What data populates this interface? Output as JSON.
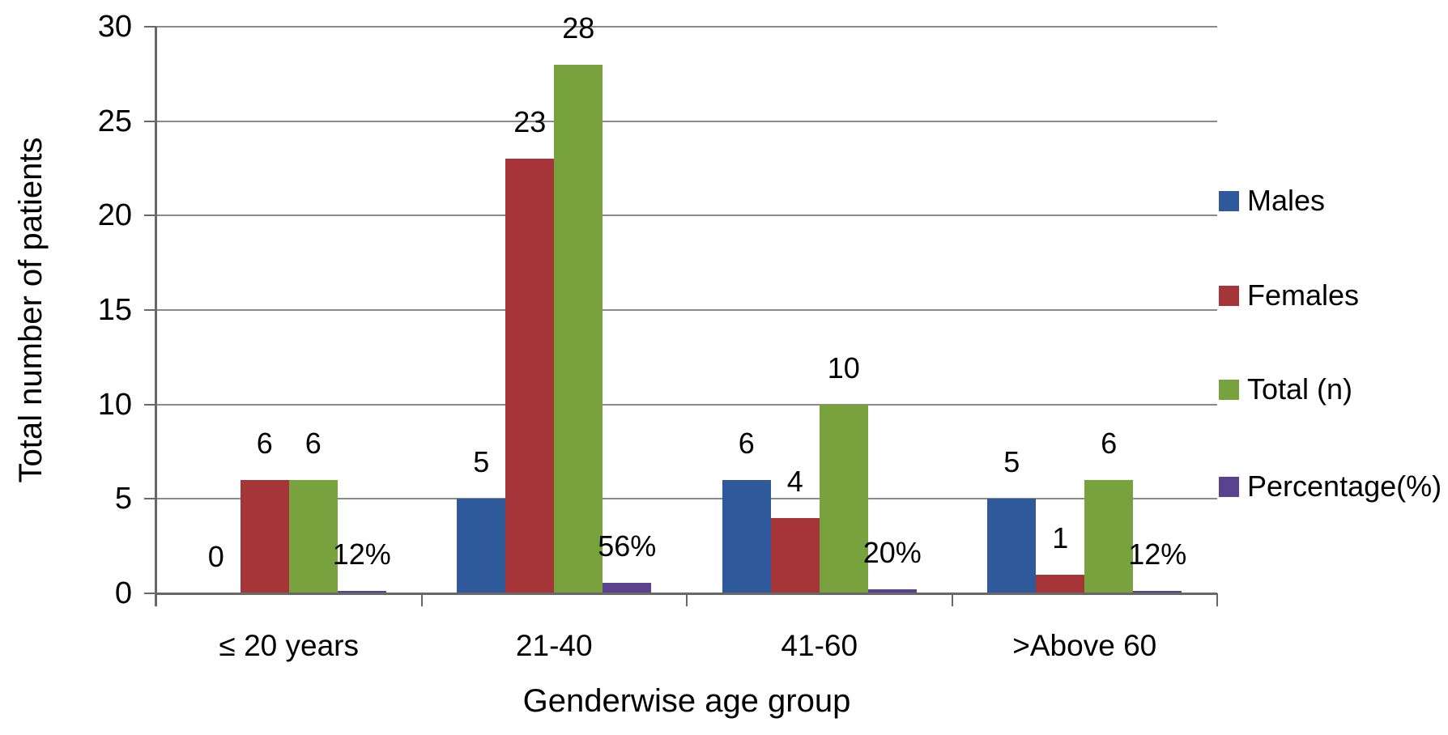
{
  "chart_data": {
    "type": "bar",
    "title": "",
    "xlabel": "Genderwise age group",
    "ylabel": "Total number of patients",
    "categories": [
      "≤ 20 years",
      "21-40",
      "41-60",
      ">Above 60"
    ],
    "y_ticks": [
      "0",
      "5",
      "10",
      "15",
      "20",
      "25",
      "30"
    ],
    "ylim": [
      0,
      30
    ],
    "grid": "horizontal-only",
    "legend_position": "right",
    "series": [
      {
        "name": "Males",
        "color": "#2E5A9C",
        "values": [
          0,
          5,
          6,
          5
        ],
        "labels": [
          "0",
          "5",
          "6",
          "5"
        ]
      },
      {
        "name": "Females",
        "color": "#A63539",
        "values": [
          6,
          23,
          4,
          1
        ],
        "labels": [
          "6",
          "23",
          "4",
          "1"
        ]
      },
      {
        "name": "Total (n)",
        "color": "#77A23D",
        "values": [
          6,
          28,
          10,
          6
        ],
        "labels": [
          "6",
          "28",
          "10",
          "6"
        ]
      },
      {
        "name": "Percentage(%)",
        "color": "#5B428F",
        "values": [
          12,
          56,
          20,
          12
        ],
        "labels": [
          "12%",
          "56%",
          "20%",
          "12%"
        ],
        "plotted_as_fraction_of": 100
      }
    ],
    "colors": {
      "gridline": "#8A8A8A",
      "axis": "#686868",
      "text": "#000000",
      "background": "#FFFFFF"
    }
  }
}
